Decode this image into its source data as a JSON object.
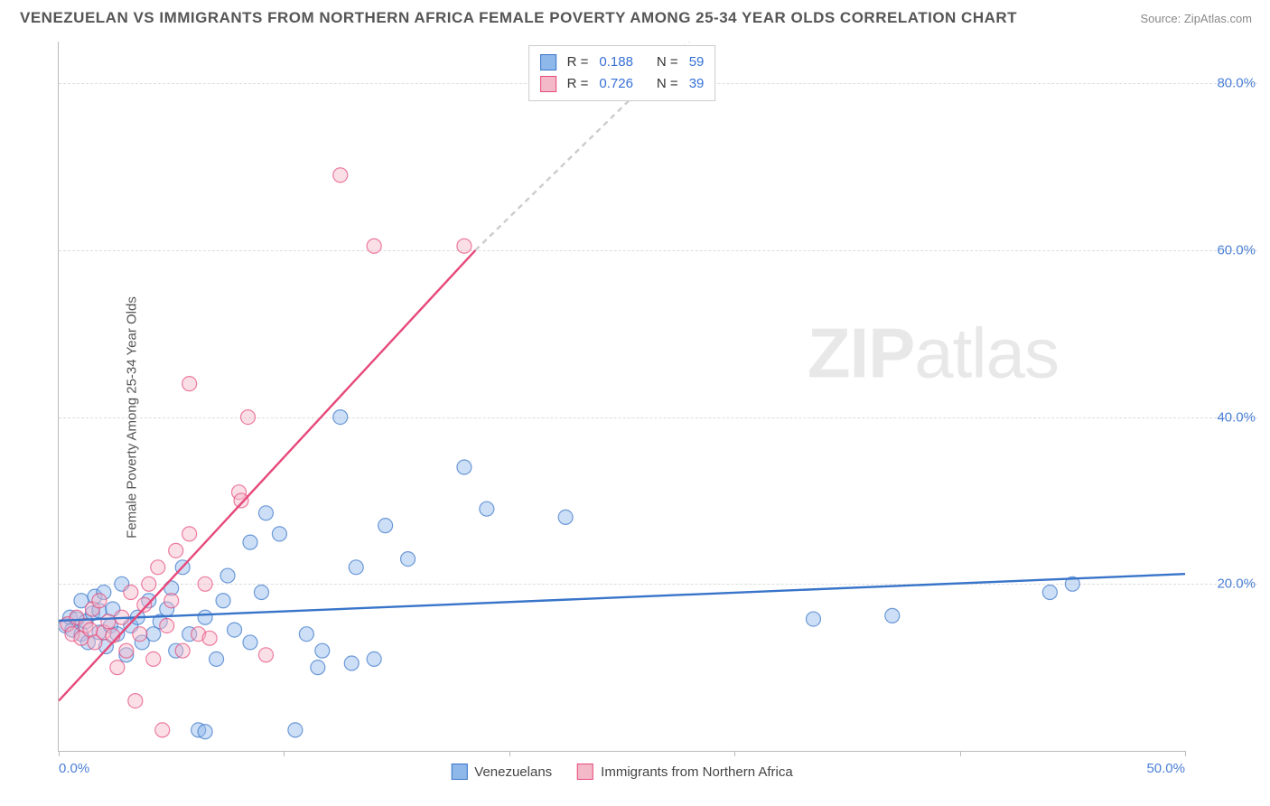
{
  "title": "VENEZUELAN VS IMMIGRANTS FROM NORTHERN AFRICA FEMALE POVERTY AMONG 25-34 YEAR OLDS CORRELATION CHART",
  "source": "Source: ZipAtlas.com",
  "ylabel": "Female Poverty Among 25-34 Year Olds",
  "watermark_bold": "ZIP",
  "watermark_rest": "atlas",
  "chart": {
    "type": "scatter",
    "xlim": [
      0,
      50
    ],
    "ylim": [
      0,
      85
    ],
    "xticks": [
      0,
      10,
      20,
      30,
      40,
      50
    ],
    "xtick_labels_shown": {
      "0": "0.0%",
      "50": "50.0%"
    },
    "yticks": [
      20,
      40,
      60,
      80
    ],
    "ytick_labels": [
      "20.0%",
      "40.0%",
      "60.0%",
      "80.0%"
    ],
    "grid_color": "#dddddd",
    "axis_color": "#bbbbbb",
    "background": "#ffffff",
    "marker_radius": 8,
    "marker_opacity": 0.45,
    "line_width": 2.4,
    "series": [
      {
        "name": "Venezuelans",
        "color_fill": "#8fb8ea",
        "color_stroke": "#3874c9",
        "R": "0.188",
        "N": "59",
        "trend": {
          "x1": 0,
          "y1": 15.6,
          "x2": 50,
          "y2": 21.2,
          "style": "solid"
        },
        "points": [
          [
            0.3,
            15
          ],
          [
            0.5,
            16
          ],
          [
            0.6,
            14.5
          ],
          [
            0.8,
            15.8
          ],
          [
            1.0,
            14
          ],
          [
            1.0,
            18
          ],
          [
            1.2,
            15.5
          ],
          [
            1.3,
            13
          ],
          [
            1.5,
            16.5
          ],
          [
            1.6,
            18.5
          ],
          [
            1.8,
            14.2
          ],
          [
            1.8,
            16.8
          ],
          [
            2.0,
            19
          ],
          [
            2.1,
            12.5
          ],
          [
            2.3,
            15
          ],
          [
            2.4,
            17
          ],
          [
            2.6,
            14
          ],
          [
            2.8,
            20
          ],
          [
            3.0,
            11.5
          ],
          [
            3.2,
            15
          ],
          [
            3.5,
            16
          ],
          [
            3.7,
            13
          ],
          [
            4.0,
            18
          ],
          [
            4.2,
            14
          ],
          [
            4.5,
            15.5
          ],
          [
            4.8,
            17
          ],
          [
            5.0,
            19.5
          ],
          [
            5.2,
            12
          ],
          [
            5.5,
            22
          ],
          [
            5.8,
            14
          ],
          [
            6.2,
            2.5
          ],
          [
            6.5,
            16
          ],
          [
            6.5,
            2.3
          ],
          [
            7.0,
            11
          ],
          [
            7.3,
            18
          ],
          [
            7.5,
            21
          ],
          [
            7.8,
            14.5
          ],
          [
            8.5,
            25
          ],
          [
            8.5,
            13
          ],
          [
            9.0,
            19
          ],
          [
            9.2,
            28.5
          ],
          [
            9.8,
            26
          ],
          [
            10.5,
            2.5
          ],
          [
            11.0,
            14
          ],
          [
            11.5,
            10
          ],
          [
            11.7,
            12
          ],
          [
            12.5,
            40
          ],
          [
            13.0,
            10.5
          ],
          [
            13.2,
            22
          ],
          [
            14.0,
            11
          ],
          [
            14.5,
            27
          ],
          [
            15.5,
            23
          ],
          [
            18.0,
            34
          ],
          [
            19.0,
            29
          ],
          [
            22.5,
            28
          ],
          [
            33.5,
            15.8
          ],
          [
            37.0,
            16.2
          ],
          [
            44.0,
            19
          ],
          [
            45.0,
            20
          ]
        ]
      },
      {
        "name": "Immigrants from Northern Africa",
        "color_fill": "#f4b9c9",
        "color_stroke": "#e6497a",
        "R": "0.726",
        "N": "39",
        "trend": {
          "x1": 0,
          "y1": 6,
          "x2": 18.5,
          "y2": 60,
          "style": "solid"
        },
        "trend_ext": {
          "x1": 18.5,
          "y1": 60,
          "x2": 28,
          "y2": 85,
          "style": "dashed"
        },
        "points": [
          [
            0.4,
            15.2
          ],
          [
            0.6,
            14
          ],
          [
            0.8,
            16
          ],
          [
            1.0,
            13.5
          ],
          [
            1.2,
            15
          ],
          [
            1.4,
            14.5
          ],
          [
            1.5,
            17
          ],
          [
            1.6,
            13
          ],
          [
            1.8,
            18
          ],
          [
            2.0,
            14.2
          ],
          [
            2.2,
            15.5
          ],
          [
            2.4,
            13.8
          ],
          [
            2.6,
            10
          ],
          [
            2.8,
            16
          ],
          [
            3.0,
            12
          ],
          [
            3.2,
            19
          ],
          [
            3.4,
            6
          ],
          [
            3.6,
            14
          ],
          [
            3.8,
            17.5
          ],
          [
            4.0,
            20
          ],
          [
            4.2,
            11
          ],
          [
            4.4,
            22
          ],
          [
            4.6,
            2.5
          ],
          [
            4.8,
            15
          ],
          [
            5.0,
            18
          ],
          [
            5.2,
            24
          ],
          [
            5.5,
            12
          ],
          [
            5.8,
            26
          ],
          [
            5.8,
            44
          ],
          [
            6.2,
            14
          ],
          [
            6.5,
            20
          ],
          [
            6.7,
            13.5
          ],
          [
            8.0,
            31
          ],
          [
            8.1,
            30
          ],
          [
            8.4,
            40
          ],
          [
            9.2,
            11.5
          ],
          [
            12.5,
            69
          ],
          [
            14.0,
            60.5
          ],
          [
            18.0,
            60.5
          ]
        ]
      }
    ],
    "legend_top": [
      {
        "series": 0,
        "R": "0.188",
        "N": "59"
      },
      {
        "series": 1,
        "R": "0.726",
        "N": "39"
      }
    ],
    "legend_bottom": [
      {
        "series": 0,
        "label": "Venezuelans"
      },
      {
        "series": 1,
        "label": "Immigrants from Northern Africa"
      }
    ]
  }
}
